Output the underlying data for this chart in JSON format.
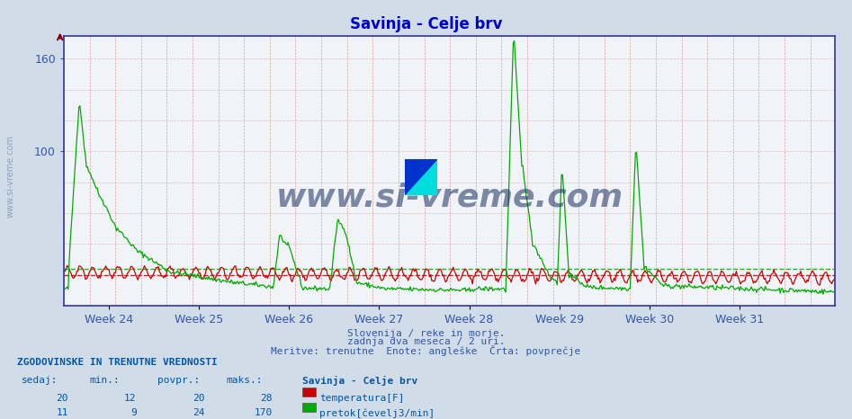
{
  "title": "Savinja - Celje brv",
  "title_color": "#0000cc",
  "bg_color": "#d0dce8",
  "plot_bg_color": "#f0f4f8",
  "grid_v_color": "#cc6666",
  "grid_h_color": "#cc8888",
  "axis_color": "#3333aa",
  "tick_color": "#3355aa",
  "week_labels": [
    "Week 24",
    "Week 25",
    "Week 26",
    "Week 27",
    "Week 28",
    "Week 29",
    "Week 30",
    "Week 31"
  ],
  "y_ticks": [
    100,
    160
  ],
  "ylim": [
    0,
    175
  ],
  "red_avg": 20,
  "green_avg": 24,
  "red_color": "#cc0000",
  "green_color": "#00aa00",
  "watermark_text": "www.si-vreme.com",
  "watermark_color": "#1a3060",
  "watermark_alpha": 0.55,
  "footer_lines": [
    "Slovenija / reke in morje.",
    "zadnja dva meseca / 2 uri.",
    "Meritve: trenutne  Enote: angleške  Črta: povprečje"
  ],
  "footer_color": "#3355aa",
  "table_header": "ZGODOVINSKE IN TRENUTNE VREDNOSTI",
  "table_cols": [
    "sedaj:",
    "min.:",
    "povpr.:",
    "maks.:"
  ],
  "table_rows": [
    [
      20,
      12,
      20,
      28
    ],
    [
      11,
      9,
      24,
      170
    ]
  ],
  "table_color": "#0055aa",
  "sidebar_text": "www.si-vreme.com",
  "sidebar_color": "#8899bb"
}
